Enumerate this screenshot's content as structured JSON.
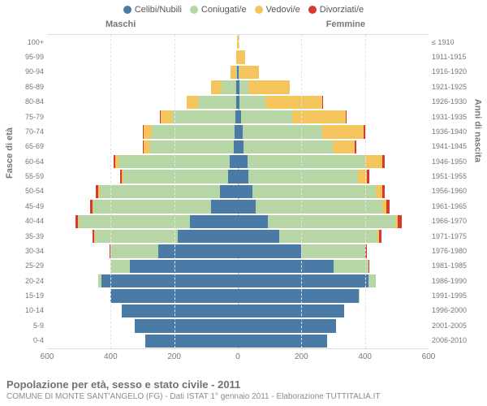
{
  "legend": {
    "items": [
      {
        "label": "Celibi/Nubili",
        "color": "#4a7ba6"
      },
      {
        "label": "Coniugati/e",
        "color": "#b7d6a5"
      },
      {
        "label": "Vedovi/e",
        "color": "#f4c55c"
      },
      {
        "label": "Divorziati/e",
        "color": "#d73a2d"
      }
    ]
  },
  "labels": {
    "male": "Maschi",
    "female": "Femmine",
    "y_left": "Fasce di età",
    "y_right": "Anni di nascita"
  },
  "axis": {
    "max": 600,
    "ticks": [
      600,
      400,
      200,
      0,
      200,
      400,
      600
    ]
  },
  "colors": {
    "single": "#4a7ba6",
    "married": "#b7d6a5",
    "widowed": "#f4c55c",
    "divorced": "#d73a2d",
    "grid": "#e4e4e4",
    "center": "#cfcfcf"
  },
  "rows": [
    {
      "age": "100+",
      "birth": "≤ 1910",
      "m": [
        0,
        0,
        2,
        0
      ],
      "f": [
        0,
        0,
        3,
        0
      ]
    },
    {
      "age": "95-99",
      "birth": "1911-1915",
      "m": [
        0,
        0,
        6,
        0
      ],
      "f": [
        0,
        0,
        22,
        0
      ]
    },
    {
      "age": "90-94",
      "birth": "1916-1920",
      "m": [
        2,
        4,
        18,
        0
      ],
      "f": [
        2,
        4,
        60,
        0
      ]
    },
    {
      "age": "85-89",
      "birth": "1921-1925",
      "m": [
        5,
        45,
        35,
        0
      ],
      "f": [
        4,
        30,
        130,
        0
      ]
    },
    {
      "age": "80-84",
      "birth": "1926-1930",
      "m": [
        6,
        120,
        35,
        0
      ],
      "f": [
        6,
        80,
        180,
        2
      ]
    },
    {
      "age": "75-79",
      "birth": "1931-1935",
      "m": [
        8,
        200,
        35,
        2
      ],
      "f": [
        10,
        160,
        170,
        3
      ]
    },
    {
      "age": "70-74",
      "birth": "1936-1940",
      "m": [
        10,
        260,
        25,
        3
      ],
      "f": [
        15,
        250,
        130,
        5
      ]
    },
    {
      "age": "65-69",
      "birth": "1941-1945",
      "m": [
        12,
        265,
        18,
        3
      ],
      "f": [
        18,
        280,
        70,
        5
      ]
    },
    {
      "age": "60-64",
      "birth": "1946-1950",
      "m": [
        25,
        350,
        10,
        5
      ],
      "f": [
        30,
        370,
        55,
        8
      ]
    },
    {
      "age": "55-59",
      "birth": "1951-1955",
      "m": [
        30,
        330,
        6,
        5
      ],
      "f": [
        32,
        345,
        30,
        6
      ]
    },
    {
      "age": "50-54",
      "birth": "1956-1960",
      "m": [
        55,
        380,
        4,
        8
      ],
      "f": [
        45,
        390,
        20,
        8
      ]
    },
    {
      "age": "45-49",
      "birth": "1961-1965",
      "m": [
        85,
        370,
        2,
        8
      ],
      "f": [
        55,
        400,
        12,
        10
      ]
    },
    {
      "age": "40-44",
      "birth": "1966-1970",
      "m": [
        150,
        350,
        2,
        8
      ],
      "f": [
        95,
        400,
        8,
        12
      ]
    },
    {
      "age": "35-39",
      "birth": "1971-1975",
      "m": [
        190,
        260,
        1,
        5
      ],
      "f": [
        130,
        310,
        4,
        8
      ]
    },
    {
      "age": "30-34",
      "birth": "1976-1980",
      "m": [
        250,
        150,
        0,
        3
      ],
      "f": [
        200,
        200,
        2,
        5
      ]
    },
    {
      "age": "25-29",
      "birth": "1981-1985",
      "m": [
        340,
        60,
        0,
        2
      ],
      "f": [
        300,
        110,
        0,
        3
      ]
    },
    {
      "age": "20-24",
      "birth": "1986-1990",
      "m": [
        430,
        10,
        0,
        0
      ],
      "f": [
        410,
        25,
        0,
        0
      ]
    },
    {
      "age": "15-19",
      "birth": "1991-1995",
      "m": [
        400,
        0,
        0,
        0
      ],
      "f": [
        380,
        2,
        0,
        0
      ]
    },
    {
      "age": "10-14",
      "birth": "1996-2000",
      "m": [
        365,
        0,
        0,
        0
      ],
      "f": [
        335,
        0,
        0,
        0
      ]
    },
    {
      "age": "5-9",
      "birth": "2001-2005",
      "m": [
        325,
        0,
        0,
        0
      ],
      "f": [
        310,
        0,
        0,
        0
      ]
    },
    {
      "age": "0-4",
      "birth": "2006-2010",
      "m": [
        290,
        0,
        0,
        0
      ],
      "f": [
        280,
        0,
        0,
        0
      ]
    }
  ],
  "footer": {
    "title": "Popolazione per età, sesso e stato civile - 2011",
    "sub": "COMUNE DI MONTE SANT'ANGELO (FG) - Dati ISTAT 1° gennaio 2011 - Elaborazione TUTTITALIA.IT"
  }
}
